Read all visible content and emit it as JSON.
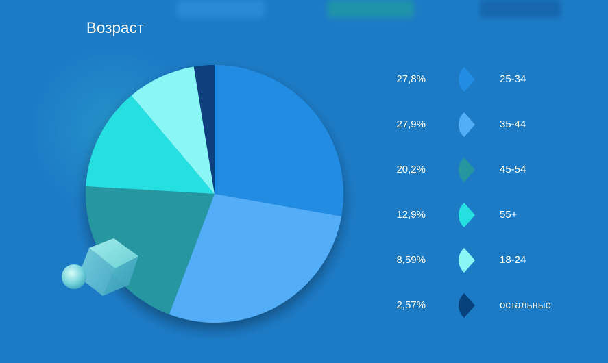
{
  "header": {
    "title": "Возраст"
  },
  "colors": {
    "background": "#1d7bc6",
    "slices": [
      "#228ce3",
      "#52aef7",
      "#2596a0",
      "#26dfe0",
      "#8af7f6",
      "#07417c"
    ]
  },
  "chart_data": {
    "type": "pie",
    "title": "Возраст",
    "categories": [
      "25-34",
      "35-44",
      "45-54",
      "55+",
      "18-24",
      "остальные"
    ],
    "values": [
      27.8,
      27.9,
      20.2,
      12.9,
      8.59,
      2.57
    ],
    "value_labels": [
      "27,8%",
      "27,9%",
      "20,2%",
      "12,9%",
      "8,59%",
      "2,57%"
    ],
    "legend_position": "right"
  }
}
